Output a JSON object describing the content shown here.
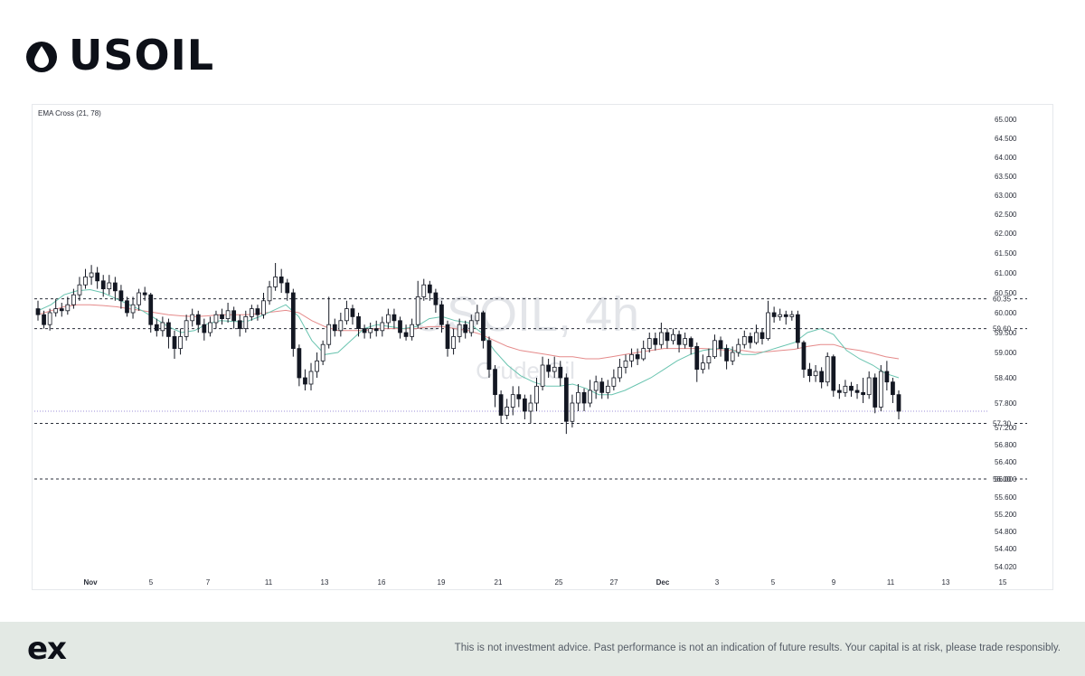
{
  "header": {
    "title": "USOIL",
    "icon": "oil-drop-icon"
  },
  "chart_data": {
    "type": "candlestick",
    "indicator_label": "EMA Cross (21, 78)",
    "watermark_symbol": "USOIL, 4h",
    "watermark_name": "Crude Oil",
    "y_axis_ticks": [
      "65.000",
      "64.500",
      "64.000",
      "63.500",
      "63.000",
      "62.500",
      "62.000",
      "61.500",
      "61.000",
      "60.500",
      "60.000",
      "59.500",
      "59.000",
      "58.400",
      "57.800",
      "57.200",
      "56.800",
      "56.400",
      "56.000",
      "55.600",
      "55.200",
      "54.800",
      "54.400",
      "54.020"
    ],
    "x_axis_ticks": [
      "Nov",
      "5",
      "7",
      "11",
      "13",
      "16",
      "19",
      "21",
      "25",
      "27",
      "Dec",
      "3",
      "5",
      "9",
      "11",
      "13",
      "15"
    ],
    "horizontal_levels": [
      {
        "label": "60.35",
        "value": 60.35
      },
      {
        "label": "59.60",
        "value": 59.6
      },
      {
        "label": "57.30",
        "value": 57.3
      },
      {
        "label": "56.00",
        "value": 56.0
      }
    ],
    "current_price_line": 57.6,
    "candles": [
      [
        60.1,
        59.95,
        60.3,
        59.8
      ],
      [
        59.95,
        59.7,
        60.05,
        59.6
      ],
      [
        59.7,
        60.0,
        60.1,
        59.55
      ],
      [
        60.0,
        60.1,
        60.35,
        59.9
      ],
      [
        60.1,
        60.05,
        60.25,
        59.9
      ],
      [
        60.05,
        60.2,
        60.4,
        59.95
      ],
      [
        60.2,
        60.45,
        60.6,
        60.1
      ],
      [
        60.45,
        60.7,
        60.9,
        60.3
      ],
      [
        60.7,
        60.9,
        61.1,
        60.6
      ],
      [
        60.9,
        61.0,
        61.2,
        60.7
      ],
      [
        61.0,
        60.8,
        61.15,
        60.6
      ],
      [
        60.8,
        60.6,
        60.95,
        60.4
      ],
      [
        60.6,
        60.75,
        60.95,
        60.45
      ],
      [
        60.75,
        60.55,
        60.9,
        60.3
      ],
      [
        60.55,
        60.3,
        60.7,
        60.1
      ],
      [
        60.3,
        60.0,
        60.4,
        59.9
      ],
      [
        60.0,
        60.2,
        60.4,
        59.85
      ],
      [
        60.2,
        60.5,
        60.6,
        60.05
      ],
      [
        60.5,
        60.45,
        60.65,
        60.3
      ],
      [
        60.45,
        59.7,
        60.5,
        59.5
      ],
      [
        59.7,
        59.55,
        59.85,
        59.4
      ],
      [
        59.55,
        59.75,
        59.9,
        59.4
      ],
      [
        59.75,
        59.4,
        59.85,
        59.1
      ],
      [
        59.4,
        59.1,
        59.55,
        58.85
      ],
      [
        59.1,
        59.4,
        59.6,
        58.95
      ],
      [
        59.4,
        59.8,
        59.95,
        59.3
      ],
      [
        59.8,
        59.95,
        60.1,
        59.65
      ],
      [
        59.95,
        59.7,
        60.05,
        59.5
      ],
      [
        59.7,
        59.5,
        59.85,
        59.3
      ],
      [
        59.5,
        59.75,
        59.9,
        59.4
      ],
      [
        59.75,
        59.95,
        60.05,
        59.6
      ],
      [
        59.95,
        59.85,
        60.1,
        59.7
      ],
      [
        59.85,
        60.05,
        60.25,
        59.75
      ],
      [
        60.05,
        59.8,
        60.15,
        59.6
      ],
      [
        59.8,
        59.6,
        59.95,
        59.4
      ],
      [
        59.6,
        59.9,
        60.05,
        59.5
      ],
      [
        59.9,
        60.1,
        60.2,
        59.8
      ],
      [
        60.1,
        59.95,
        60.2,
        59.8
      ],
      [
        59.95,
        60.3,
        60.5,
        59.85
      ],
      [
        60.3,
        60.65,
        60.8,
        60.2
      ],
      [
        60.65,
        60.9,
        61.25,
        60.55
      ],
      [
        60.9,
        60.75,
        61.1,
        60.5
      ],
      [
        60.75,
        60.5,
        60.85,
        60.3
      ],
      [
        60.5,
        59.1,
        60.6,
        58.9
      ],
      [
        59.1,
        58.4,
        59.2,
        58.2
      ],
      [
        58.4,
        58.25,
        58.6,
        58.1
      ],
      [
        58.25,
        58.55,
        58.75,
        58.1
      ],
      [
        58.55,
        58.8,
        59.0,
        58.4
      ],
      [
        58.8,
        59.2,
        59.3,
        58.7
      ],
      [
        59.2,
        59.7,
        60.4,
        59.1
      ],
      [
        59.7,
        59.55,
        59.85,
        59.4
      ],
      [
        59.55,
        59.8,
        60.0,
        59.4
      ],
      [
        59.8,
        60.1,
        60.3,
        59.7
      ],
      [
        60.1,
        59.9,
        60.2,
        59.7
      ],
      [
        59.9,
        59.6,
        60.0,
        59.4
      ],
      [
        59.6,
        59.5,
        59.7,
        59.35
      ],
      [
        59.5,
        59.6,
        59.75,
        59.35
      ],
      [
        59.6,
        59.55,
        59.8,
        59.4
      ],
      [
        59.55,
        59.75,
        59.9,
        59.4
      ],
      [
        59.75,
        59.95,
        60.1,
        59.6
      ],
      [
        59.95,
        59.8,
        60.1,
        59.6
      ],
      [
        59.8,
        59.5,
        59.9,
        59.35
      ],
      [
        59.5,
        59.4,
        59.7,
        59.3
      ],
      [
        59.4,
        59.7,
        59.85,
        59.3
      ],
      [
        59.7,
        60.4,
        60.8,
        59.6
      ],
      [
        60.4,
        60.7,
        60.85,
        60.3
      ],
      [
        60.7,
        60.5,
        60.8,
        60.3
      ],
      [
        60.5,
        60.2,
        60.6,
        60.0
      ],
      [
        60.2,
        59.7,
        60.3,
        59.5
      ],
      [
        59.7,
        59.1,
        59.8,
        58.9
      ],
      [
        59.1,
        59.4,
        59.6,
        58.95
      ],
      [
        59.4,
        59.7,
        59.85,
        59.25
      ],
      [
        59.7,
        59.5,
        59.8,
        59.35
      ],
      [
        59.5,
        59.8,
        59.95,
        59.4
      ],
      [
        59.8,
        60.0,
        60.2,
        59.7
      ],
      [
        60.0,
        59.3,
        60.05,
        59.1
      ],
      [
        59.3,
        58.6,
        59.4,
        58.4
      ],
      [
        58.6,
        58.0,
        58.7,
        57.7
      ],
      [
        58.0,
        57.5,
        58.1,
        57.3
      ],
      [
        57.5,
        57.7,
        57.9,
        57.4
      ],
      [
        57.7,
        58.0,
        58.2,
        57.5
      ],
      [
        58.0,
        57.9,
        58.2,
        57.7
      ],
      [
        57.9,
        57.6,
        58.0,
        57.4
      ],
      [
        57.6,
        57.8,
        58.0,
        57.3
      ],
      [
        57.8,
        58.2,
        58.4,
        57.6
      ],
      [
        58.2,
        58.7,
        58.9,
        58.1
      ],
      [
        58.7,
        58.55,
        58.85,
        58.4
      ],
      [
        58.55,
        58.65,
        58.9,
        58.4
      ],
      [
        58.65,
        58.4,
        58.8,
        58.2
      ],
      [
        58.4,
        57.35,
        58.5,
        57.05
      ],
      [
        57.35,
        57.8,
        58.0,
        57.2
      ],
      [
        57.8,
        58.05,
        58.25,
        57.6
      ],
      [
        58.05,
        57.8,
        58.15,
        57.6
      ],
      [
        57.8,
        58.1,
        58.35,
        57.7
      ],
      [
        58.1,
        58.3,
        58.45,
        57.9
      ],
      [
        58.3,
        58.05,
        58.4,
        57.9
      ],
      [
        58.05,
        58.2,
        58.35,
        57.9
      ],
      [
        58.2,
        58.4,
        58.6,
        58.1
      ],
      [
        58.4,
        58.65,
        58.85,
        58.3
      ],
      [
        58.65,
        58.8,
        58.95,
        58.5
      ],
      [
        58.8,
        58.95,
        59.1,
        58.65
      ],
      [
        58.95,
        58.85,
        59.1,
        58.7
      ],
      [
        58.85,
        59.1,
        59.3,
        58.8
      ],
      [
        59.1,
        59.35,
        59.5,
        59.0
      ],
      [
        59.35,
        59.2,
        59.5,
        59.05
      ],
      [
        59.2,
        59.5,
        59.75,
        59.1
      ],
      [
        59.5,
        59.3,
        59.6,
        59.1
      ],
      [
        59.3,
        59.45,
        59.6,
        59.2
      ],
      [
        59.45,
        59.2,
        59.55,
        59.0
      ],
      [
        59.2,
        59.35,
        59.5,
        59.1
      ],
      [
        59.35,
        59.15,
        59.4,
        58.95
      ],
      [
        59.15,
        58.6,
        59.25,
        58.3
      ],
      [
        58.6,
        58.75,
        58.95,
        58.5
      ],
      [
        58.75,
        58.9,
        59.1,
        58.6
      ],
      [
        58.9,
        59.3,
        59.45,
        58.85
      ],
      [
        59.3,
        59.1,
        59.4,
        58.9
      ],
      [
        59.1,
        58.8,
        59.2,
        58.6
      ],
      [
        58.8,
        59.0,
        59.15,
        58.7
      ],
      [
        59.0,
        59.2,
        59.35,
        58.9
      ],
      [
        59.2,
        59.4,
        59.55,
        59.1
      ],
      [
        59.4,
        59.25,
        59.5,
        59.1
      ],
      [
        59.25,
        59.5,
        59.7,
        59.2
      ],
      [
        59.5,
        59.35,
        59.6,
        59.2
      ],
      [
        59.35,
        60.0,
        60.3,
        59.3
      ],
      [
        60.0,
        59.9,
        60.15,
        59.75
      ],
      [
        59.9,
        59.95,
        60.1,
        59.8
      ],
      [
        59.95,
        59.9,
        60.05,
        59.7
      ],
      [
        59.9,
        59.95,
        60.05,
        59.8
      ],
      [
        59.95,
        59.25,
        60.05,
        59.1
      ],
      [
        59.25,
        58.6,
        59.3,
        58.4
      ],
      [
        58.6,
        58.45,
        58.75,
        58.3
      ],
      [
        58.45,
        58.55,
        58.7,
        58.3
      ],
      [
        58.55,
        58.3,
        58.65,
        58.15
      ],
      [
        58.3,
        58.9,
        59.0,
        58.2
      ],
      [
        58.9,
        58.1,
        58.95,
        57.95
      ],
      [
        58.1,
        58.05,
        58.25,
        57.9
      ],
      [
        58.05,
        58.2,
        58.35,
        57.95
      ],
      [
        58.2,
        58.1,
        58.3,
        57.95
      ],
      [
        58.1,
        58.05,
        58.25,
        57.9
      ],
      [
        58.05,
        58.0,
        58.4,
        57.8
      ],
      [
        58.0,
        58.4,
        58.55,
        57.9
      ],
      [
        58.4,
        57.7,
        58.5,
        57.55
      ],
      [
        57.7,
        58.55,
        58.7,
        57.6
      ],
      [
        58.55,
        58.3,
        58.8,
        58.1
      ],
      [
        58.3,
        58.0,
        58.4,
        57.8
      ],
      [
        58.0,
        57.6,
        58.1,
        57.4
      ]
    ],
    "ema_fast": [
      60.05,
      60.2,
      60.45,
      60.55,
      60.58,
      60.5,
      60.35,
      60.2,
      60.05,
      59.85,
      59.65,
      59.5,
      59.55,
      59.72,
      59.8,
      59.78,
      59.78,
      59.9,
      60.05,
      60.2,
      59.9,
      59.3,
      58.95,
      59.0,
      59.3,
      59.6,
      59.7,
      59.65,
      59.6,
      59.65,
      59.85,
      59.9,
      59.8,
      59.75,
      59.5,
      59.05,
      58.7,
      58.45,
      58.3,
      58.2,
      58.2,
      58.25,
      58.15,
      58.0,
      58.0,
      58.1,
      58.25,
      58.4,
      58.6,
      58.8,
      58.95,
      59.05,
      59.1,
      59.1,
      58.95,
      58.95,
      59.05,
      59.15,
      59.25,
      59.5,
      59.6,
      59.45,
      59.05,
      58.85,
      58.7,
      58.5,
      58.4
    ],
    "ema_slow": [
      59.95,
      60.05,
      60.15,
      60.2,
      60.2,
      60.18,
      60.15,
      60.1,
      60.05,
      60.0,
      59.95,
      59.92,
      59.9,
      59.92,
      59.95,
      59.95,
      59.95,
      59.98,
      60.02,
      60.06,
      60.0,
      59.8,
      59.65,
      59.55,
      59.55,
      59.55,
      59.6,
      59.6,
      59.6,
      59.6,
      59.65,
      59.65,
      59.6,
      59.55,
      59.45,
      59.3,
      59.15,
      59.05,
      59.0,
      58.95,
      58.9,
      58.9,
      58.85,
      58.85,
      58.9,
      58.95,
      59.0,
      59.05,
      59.1,
      59.1,
      59.1,
      59.1,
      59.08,
      59.05,
      59.05,
      59.0,
      59.02,
      59.05,
      59.08,
      59.15,
      59.2,
      59.2,
      59.1,
      59.05,
      58.98,
      58.9,
      58.85
    ]
  },
  "colors": {
    "bull": "#ffffff",
    "bear": "#131722",
    "ema_fast": "#6ac4b0",
    "ema_slow": "#e58a8a",
    "level_line": "#2a2e39",
    "current_price": "#9c8fd8"
  },
  "footer": {
    "logo": "ex",
    "disclaimer": "This is not investment advice. Past performance is not an indication of future results. Your capital is at risk, please trade responsibly."
  }
}
